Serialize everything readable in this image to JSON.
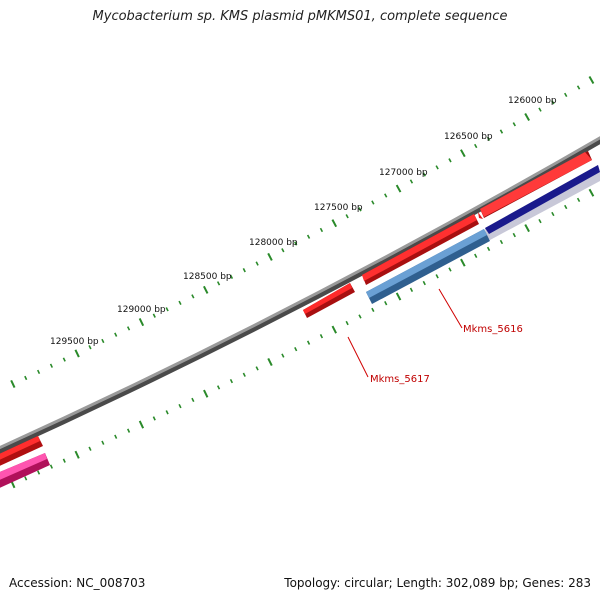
{
  "title": "Mycobacterium sp. KMS plasmid pMKMS01, complete sequence",
  "footer": {
    "accession": "Accession: NC_008703",
    "summary": "Topology: circular; Length: 302,089 bp; Genes: 283"
  },
  "ruler": {
    "labels": [
      "126000 bp",
      "126500 bp",
      "127000 bp",
      "127500 bp",
      "128000 bp",
      "128500 bp",
      "129000 bp",
      "129500 bp"
    ],
    "tick_color": "#2a8a2a"
  },
  "genes": {
    "labels": [
      "Mkms_5616",
      "Mkms_5617"
    ],
    "label_color": "#c00000"
  },
  "colors": {
    "backbone": "#7a7a7a",
    "forward_gene": "#e41a1c",
    "reverse_gene_navy": "#1a1a8c",
    "reverse_gene_steel": "#4f86b8",
    "reverse_gene_pink": "#e0207a"
  }
}
